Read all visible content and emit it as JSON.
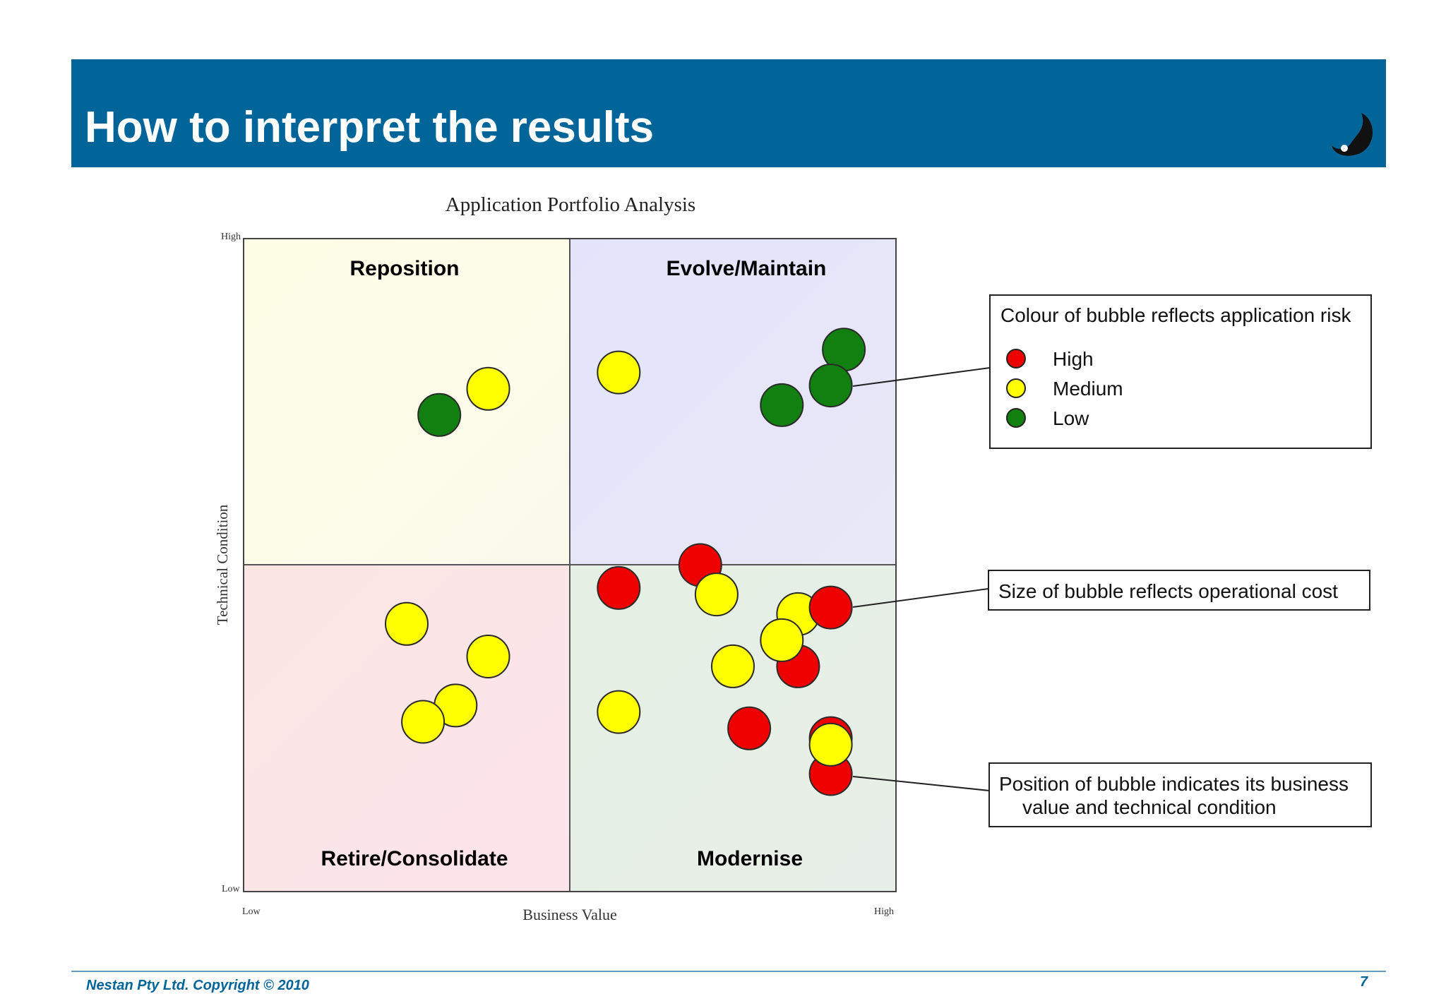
{
  "slide": {
    "title": "How to interpret the results",
    "footer": "Nestan Pty Ltd.  Copyright © 2010",
    "page_number": "7",
    "logo_icon": "yin-yang-icon"
  },
  "legend": {
    "title": "Colour of bubble reflects application risk",
    "items": [
      {
        "label": "High",
        "color": "#ee0000"
      },
      {
        "label": "Medium",
        "color": "#ffff00"
      },
      {
        "label": "Low",
        "color": "#118011"
      }
    ]
  },
  "notes": {
    "size": "Size of bubble reflects operational cost",
    "position_line1": "Position of bubble indicates its business",
    "position_line2": "value and technical condition"
  },
  "chart_data": {
    "type": "scatter",
    "title": "Application Portfolio Analysis",
    "xlabel": "Business Value",
    "ylabel": "Technical Condition",
    "x_tick_labels": [
      "Low",
      "High"
    ],
    "y_tick_labels": [
      "Low",
      "High"
    ],
    "xlim": [
      0,
      100
    ],
    "ylim": [
      0,
      100
    ],
    "quadrants": [
      {
        "label": "Reposition",
        "position": "top-left",
        "color": "#fefee8"
      },
      {
        "label": "Evolve/Maintain",
        "position": "top-right",
        "color": "#e6e6fa"
      },
      {
        "label": "Retire/Consolidate",
        "position": "bottom-left",
        "color": "#fde6e6"
      },
      {
        "label": "Modernise",
        "position": "bottom-right",
        "color": "#e6f0e6"
      }
    ],
    "risk_colors": {
      "High": "#ee0000",
      "Medium": "#ffff00",
      "Low": "#118011"
    },
    "points": [
      {
        "x": 30,
        "y": 73,
        "risk": "Low"
      },
      {
        "x": 37.5,
        "y": 77,
        "risk": "Medium"
      },
      {
        "x": 57.5,
        "y": 79.5,
        "risk": "Medium"
      },
      {
        "x": 92,
        "y": 83,
        "risk": "Low"
      },
      {
        "x": 90,
        "y": 77.5,
        "risk": "Low"
      },
      {
        "x": 82.5,
        "y": 74.5,
        "risk": "Low"
      },
      {
        "x": 85,
        "y": 42.5,
        "risk": "Medium"
      },
      {
        "x": 25,
        "y": 41,
        "risk": "Medium"
      },
      {
        "x": 70,
        "y": 50,
        "risk": "High"
      },
      {
        "x": 57.5,
        "y": 46.5,
        "risk": "High"
      },
      {
        "x": 72.5,
        "y": 45.5,
        "risk": "Medium"
      },
      {
        "x": 90,
        "y": 43.5,
        "risk": "High"
      },
      {
        "x": 85,
        "y": 34.5,
        "risk": "High"
      },
      {
        "x": 82.5,
        "y": 38.5,
        "risk": "Medium"
      },
      {
        "x": 75,
        "y": 34.5,
        "risk": "Medium"
      },
      {
        "x": 37.5,
        "y": 36,
        "risk": "Medium"
      },
      {
        "x": 32.5,
        "y": 28.5,
        "risk": "Medium"
      },
      {
        "x": 27.5,
        "y": 26,
        "risk": "Medium"
      },
      {
        "x": 57.5,
        "y": 27.5,
        "risk": "Medium"
      },
      {
        "x": 77.5,
        "y": 25,
        "risk": "High"
      },
      {
        "x": 90,
        "y": 23.5,
        "risk": "High"
      },
      {
        "x": 90,
        "y": 18,
        "risk": "High"
      },
      {
        "x": 90,
        "y": 22.5,
        "risk": "Medium"
      }
    ]
  }
}
